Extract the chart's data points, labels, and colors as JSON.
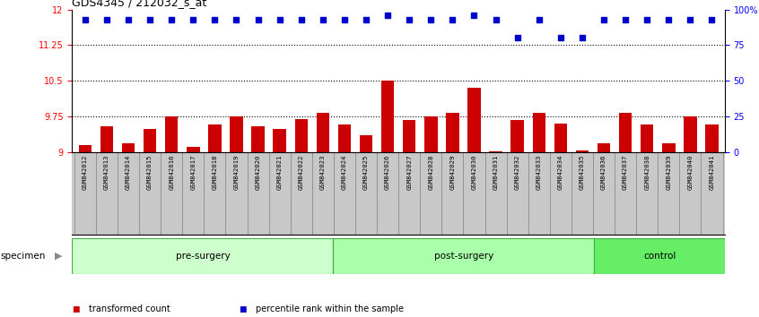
{
  "title": "GDS4345 / 212032_s_at",
  "samples": [
    "GSM842012",
    "GSM842013",
    "GSM842014",
    "GSM842015",
    "GSM842016",
    "GSM842017",
    "GSM842018",
    "GSM842019",
    "GSM842020",
    "GSM842021",
    "GSM842022",
    "GSM842023",
    "GSM842024",
    "GSM842025",
    "GSM842026",
    "GSM842027",
    "GSM842028",
    "GSM842029",
    "GSM842030",
    "GSM842031",
    "GSM842032",
    "GSM842033",
    "GSM842034",
    "GSM842035",
    "GSM842036",
    "GSM842037",
    "GSM842038",
    "GSM842039",
    "GSM842040",
    "GSM842041"
  ],
  "bar_values": [
    9.15,
    9.55,
    9.18,
    9.48,
    9.75,
    9.12,
    9.58,
    9.75,
    9.55,
    9.48,
    9.7,
    9.82,
    9.58,
    9.35,
    10.5,
    9.68,
    9.75,
    9.82,
    10.35,
    9.02,
    9.68,
    9.82,
    9.6,
    9.03,
    9.18,
    9.82,
    9.58,
    9.18,
    9.75,
    9.58
  ],
  "blue_values": [
    93,
    93,
    93,
    93,
    93,
    93,
    93,
    93,
    93,
    93,
    93,
    93,
    93,
    93,
    96,
    93,
    93,
    93,
    96,
    93,
    80,
    93,
    80,
    80,
    93,
    93,
    93,
    93,
    93,
    93
  ],
  "groups": [
    {
      "label": "pre-surgery",
      "start": 0,
      "end": 12
    },
    {
      "label": "post-surgery",
      "start": 12,
      "end": 24
    },
    {
      "label": "control",
      "start": 24,
      "end": 30
    }
  ],
  "group_colors": [
    "#ccffcc",
    "#aaffaa",
    "#66ee66"
  ],
  "ylim_left": [
    9.0,
    12.0
  ],
  "ylim_right": [
    0,
    100
  ],
  "yticks_left": [
    9.0,
    9.75,
    10.5,
    11.25,
    12.0
  ],
  "ytick_left_labels": [
    "9",
    "9.75",
    "10.5",
    "11.25",
    "12"
  ],
  "yticks_right": [
    0,
    25,
    50,
    75,
    100
  ],
  "ytick_right_labels": [
    "0",
    "25",
    "50",
    "75",
    "100%"
  ],
  "hlines": [
    9.75,
    10.5,
    11.25
  ],
  "bar_color": "#cc0000",
  "blue_color": "#0000cc",
  "bar_bottom": 9.0,
  "label_bg_color": "#c8c8c8",
  "label_line_color": "#888888",
  "legend_items": [
    {
      "color": "#cc0000",
      "label": "transformed count"
    },
    {
      "color": "#0000cc",
      "label": "percentile rank within the sample"
    }
  ]
}
